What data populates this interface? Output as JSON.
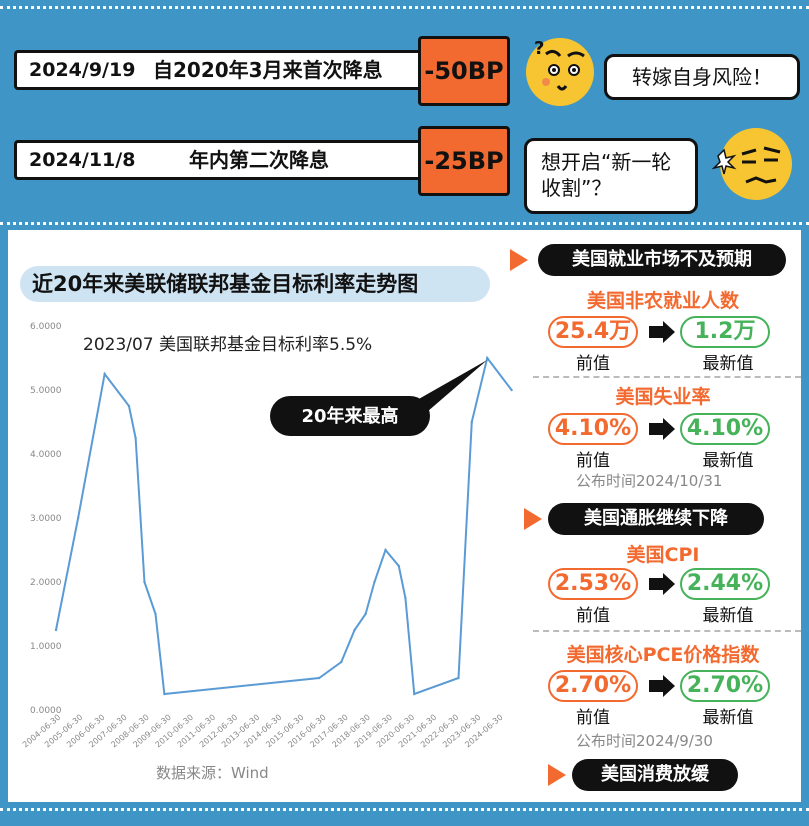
{
  "events": [
    {
      "date": "2024/9/19",
      "desc": "自2020年3月来首次降息",
      "bp": "-50BP"
    },
    {
      "date": "2024/11/8",
      "desc": "年内第二次降息",
      "bp": "-25BP"
    }
  ],
  "bubbles": [
    "转嫁自身风险！",
    "想开启“新一轮收割”？"
  ],
  "chart_title": "近20年来美联储联邦基金目标利率走势图",
  "annotation_top": "2023/07  美国联邦基金目标利率5.5%",
  "callout": "20年来最高",
  "source": "数据来源：Wind",
  "colors": {
    "accent": "#f26a30",
    "green": "#46b25a",
    "bg": "#3f95c5",
    "line": "#5b9bd5"
  },
  "chart_data": {
    "type": "line",
    "title": "近20年来美联储联邦基金目标利率走势图",
    "ylim": [
      0,
      6
    ],
    "yticks": [
      "0.0000",
      "1.0000",
      "2.0000",
      "3.0000",
      "4.0000",
      "5.0000",
      "6.0000"
    ],
    "xticks": [
      "2004-06-30",
      "2005-06-30",
      "2006-06-30",
      "2007-06-30",
      "2008-06-30",
      "2009-06-30",
      "2010-06-30",
      "2011-06-30",
      "2012-06-30",
      "2013-06-30",
      "2014-06-30",
      "2015-06-30",
      "2016-06-30",
      "2017-06-30",
      "2018-06-30",
      "2019-06-30",
      "2020-06-30",
      "2021-06-30",
      "2022-06-30",
      "2023-06-30",
      "2024-06-30"
    ],
    "x": [
      2004.0,
      2005.0,
      2006.2,
      2007.3,
      2007.6,
      2008.0,
      2008.5,
      2008.9,
      2015.9,
      2016.9,
      2017.5,
      2018.0,
      2018.4,
      2018.9,
      2019.5,
      2019.8,
      2020.2,
      2022.2,
      2022.8,
      2023.5,
      2024.6
    ],
    "values": [
      1.25,
      3.0,
      5.25,
      4.75,
      4.25,
      2.0,
      1.5,
      0.25,
      0.5,
      0.75,
      1.25,
      1.5,
      2.0,
      2.5,
      2.25,
      1.75,
      0.25,
      0.5,
      4.5,
      5.5,
      5.0
    ]
  },
  "right": {
    "sec1_header": "美国就业市场不及预期",
    "nfp": {
      "title": "美国非农就业人数",
      "prev": "25.4万",
      "new": "1.2万"
    },
    "unemp": {
      "title": "美国失业率",
      "prev": "4.10%",
      "new": "4.10%"
    },
    "pub1": "公布时间2024/10/31",
    "sec2_header": "美国通胀继续下降",
    "cpi": {
      "title": "美国CPI",
      "prev": "2.53%",
      "new": "2.44%"
    },
    "pce": {
      "title": "美国核心PCE价格指数",
      "prev": "2.70%",
      "new": "2.70%"
    },
    "pub2": "公布时间2024/9/30",
    "sec3_header": "美国消费放缓",
    "prev_label": "前值",
    "new_label": "最新值"
  }
}
